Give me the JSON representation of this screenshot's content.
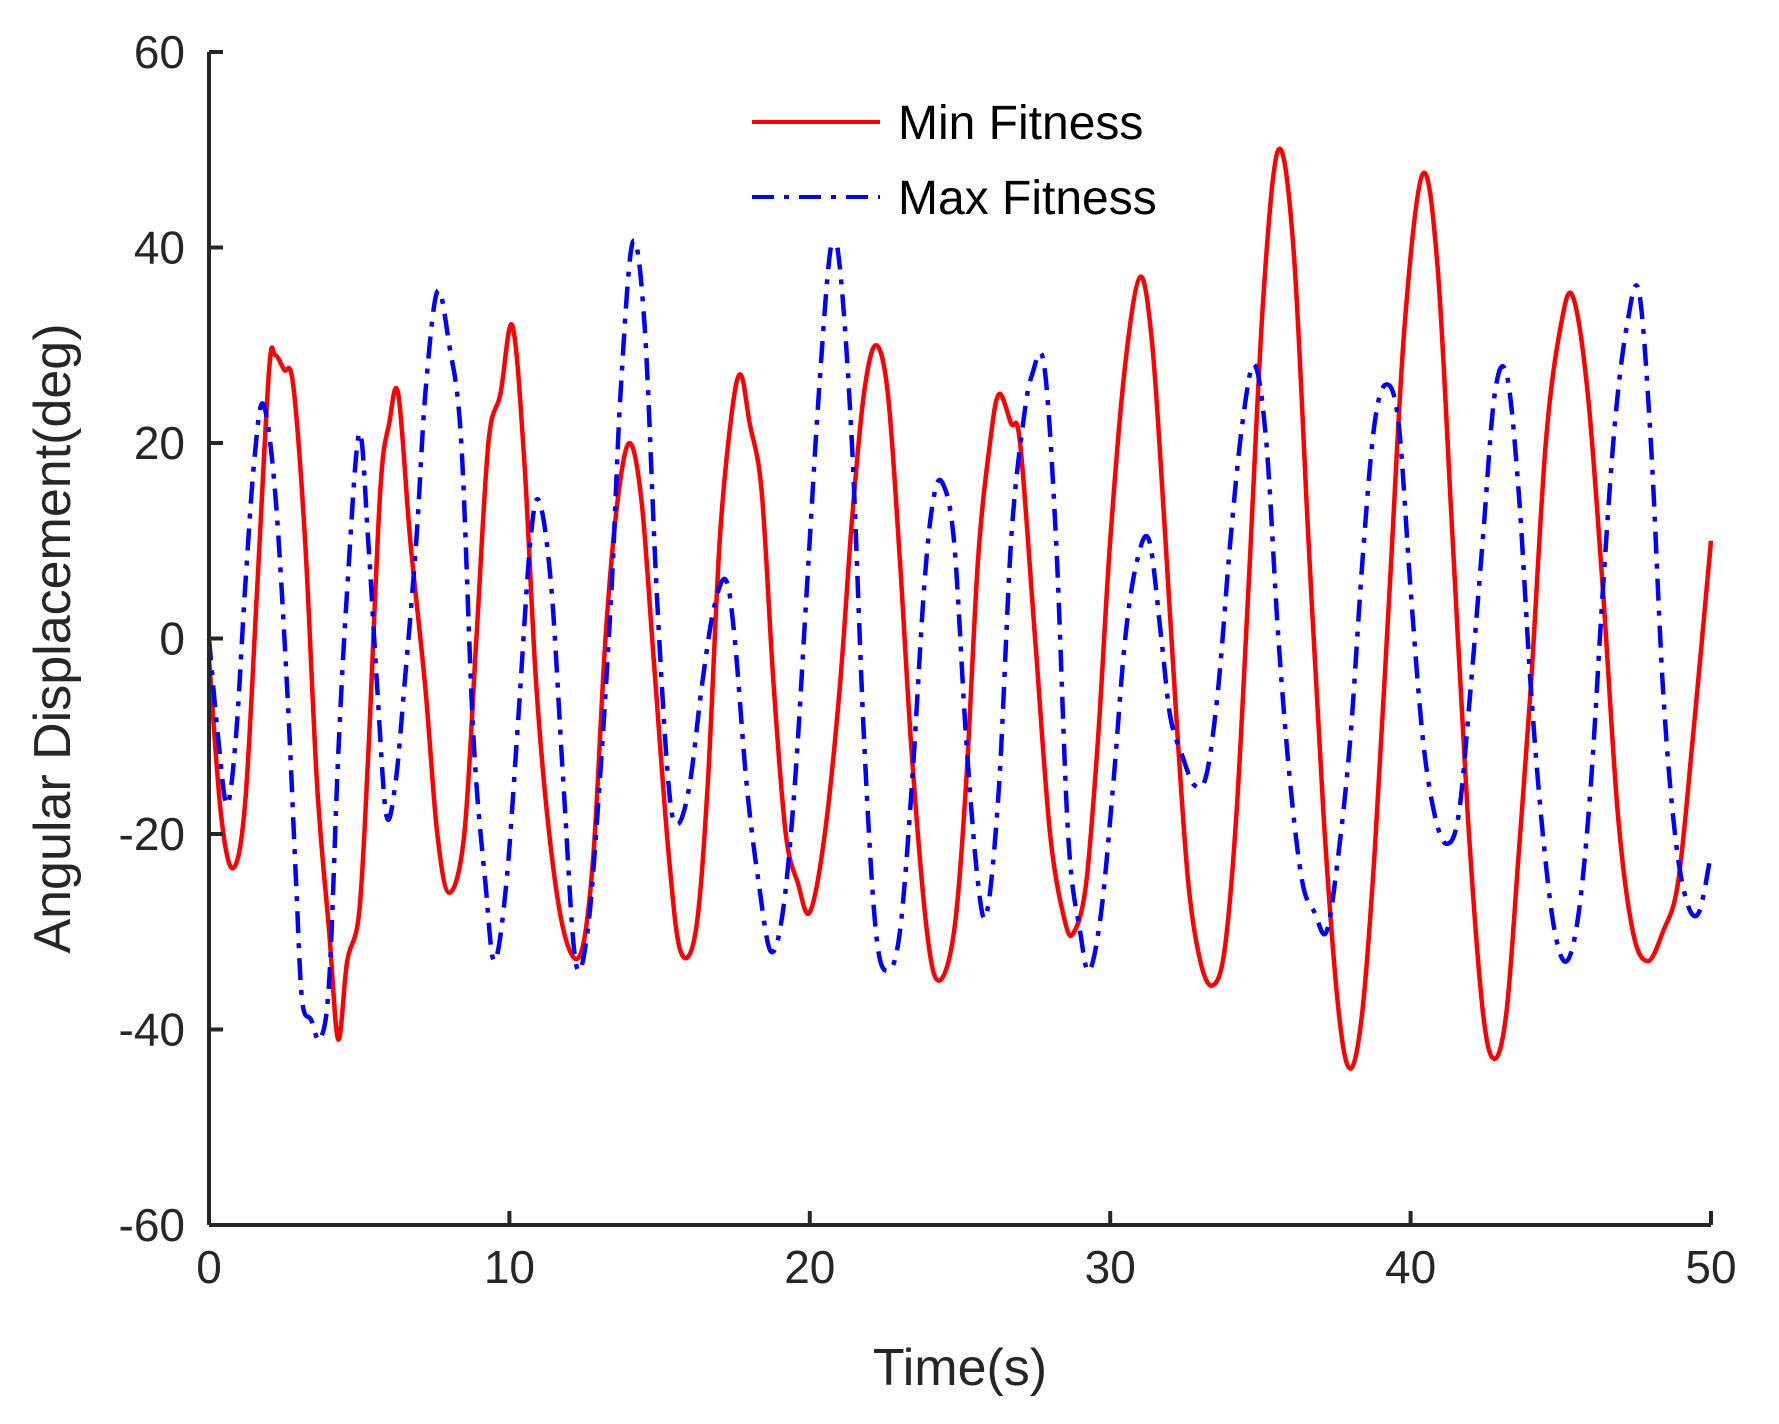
{
  "chart_data": {
    "type": "line",
    "title": "",
    "xlabel": "Time(s)",
    "ylabel": "Angular Displacement(deg)",
    "xlim": [
      0,
      50
    ],
    "ylim": [
      -60,
      60
    ],
    "xticks": [
      0,
      10,
      20,
      30,
      40,
      50
    ],
    "yticks": [
      -60,
      -40,
      -20,
      0,
      20,
      40,
      60
    ],
    "xtick_labels": [
      "0",
      "10",
      "20",
      "30",
      "40",
      "50"
    ],
    "ytick_labels": [
      "-60",
      "-40",
      "-20",
      "0",
      "20",
      "40",
      "60"
    ],
    "grid": false,
    "legend_position": "top-center",
    "series": [
      {
        "name": "Min Fitness",
        "color": "#ff0000",
        "style": "solid",
        "points": [
          [
            0,
            -2
          ],
          [
            0.4,
            -18
          ],
          [
            0.8,
            -23.5
          ],
          [
            1.2,
            -17
          ],
          [
            1.6,
            5
          ],
          [
            2.0,
            27.5
          ],
          [
            2.2,
            29
          ],
          [
            2.5,
            27.5
          ],
          [
            2.8,
            26
          ],
          [
            3.2,
            10
          ],
          [
            3.6,
            -15
          ],
          [
            4.0,
            -30
          ],
          [
            4.3,
            -41
          ],
          [
            4.6,
            -33
          ],
          [
            5.0,
            -28
          ],
          [
            5.3,
            -12
          ],
          [
            5.7,
            15
          ],
          [
            6.0,
            22
          ],
          [
            6.3,
            25
          ],
          [
            6.7,
            10
          ],
          [
            7.2,
            -5
          ],
          [
            7.6,
            -20
          ],
          [
            8.0,
            -26
          ],
          [
            8.5,
            -20
          ],
          [
            8.9,
            0
          ],
          [
            9.3,
            20
          ],
          [
            9.7,
            25
          ],
          [
            10.1,
            32
          ],
          [
            10.5,
            18
          ],
          [
            10.9,
            -5
          ],
          [
            11.4,
            -22
          ],
          [
            11.9,
            -31
          ],
          [
            12.4,
            -32
          ],
          [
            12.8,
            -22
          ],
          [
            13.2,
            0
          ],
          [
            13.6,
            14
          ],
          [
            14.0,
            20
          ],
          [
            14.4,
            14
          ],
          [
            14.8,
            -2
          ],
          [
            15.3,
            -22
          ],
          [
            15.7,
            -32
          ],
          [
            16.2,
            -30
          ],
          [
            16.6,
            -15
          ],
          [
            17.0,
            10
          ],
          [
            17.4,
            23
          ],
          [
            17.7,
            27
          ],
          [
            18.0,
            22
          ],
          [
            18.4,
            15
          ],
          [
            18.8,
            -5
          ],
          [
            19.2,
            -20
          ],
          [
            19.6,
            -25
          ],
          [
            20.0,
            -28
          ],
          [
            20.5,
            -20
          ],
          [
            21.0,
            -5
          ],
          [
            21.4,
            12
          ],
          [
            21.8,
            25
          ],
          [
            22.2,
            30
          ],
          [
            22.6,
            25
          ],
          [
            23.0,
            8
          ],
          [
            23.4,
            -12
          ],
          [
            23.9,
            -30
          ],
          [
            24.3,
            -35
          ],
          [
            24.8,
            -30
          ],
          [
            25.2,
            -15
          ],
          [
            25.6,
            8
          ],
          [
            26.0,
            20
          ],
          [
            26.3,
            25
          ],
          [
            26.7,
            22
          ],
          [
            27.0,
            20
          ],
          [
            27.5,
            0
          ],
          [
            28.0,
            -20
          ],
          [
            28.5,
            -29
          ],
          [
            28.8,
            -30
          ],
          [
            29.2,
            -25
          ],
          [
            29.6,
            -10
          ],
          [
            30.0,
            10
          ],
          [
            30.5,
            28
          ],
          [
            31.0,
            37
          ],
          [
            31.4,
            30
          ],
          [
            31.8,
            12
          ],
          [
            32.2,
            -8
          ],
          [
            32.6,
            -25
          ],
          [
            33.0,
            -33
          ],
          [
            33.4,
            -35.5
          ],
          [
            33.8,
            -32
          ],
          [
            34.2,
            -18
          ],
          [
            34.6,
            5
          ],
          [
            35.1,
            35
          ],
          [
            35.6,
            50
          ],
          [
            36.1,
            40
          ],
          [
            36.6,
            10
          ],
          [
            37.1,
            -18
          ],
          [
            37.6,
            -38
          ],
          [
            38.0,
            -44
          ],
          [
            38.4,
            -38
          ],
          [
            38.8,
            -22
          ],
          [
            39.3,
            5
          ],
          [
            39.8,
            32
          ],
          [
            40.4,
            47.5
          ],
          [
            40.9,
            38
          ],
          [
            41.4,
            10
          ],
          [
            41.9,
            -18
          ],
          [
            42.4,
            -38
          ],
          [
            42.8,
            -43
          ],
          [
            43.2,
            -38
          ],
          [
            43.6,
            -22
          ],
          [
            44.0,
            -5
          ],
          [
            44.5,
            20
          ],
          [
            45.0,
            32
          ],
          [
            45.4,
            35
          ],
          [
            45.9,
            25
          ],
          [
            46.4,
            5
          ],
          [
            46.9,
            -18
          ],
          [
            47.4,
            -30
          ],
          [
            47.9,
            -33
          ],
          [
            48.4,
            -30
          ],
          [
            48.9,
            -25
          ],
          [
            49.4,
            -10
          ],
          [
            50.0,
            10
          ]
        ]
      },
      {
        "name": "Max Fitness",
        "color": "#0000ff",
        "style": "dashdot",
        "points": [
          [
            0,
            0
          ],
          [
            0.3,
            -10
          ],
          [
            0.6,
            -17
          ],
          [
            0.9,
            -10
          ],
          [
            1.2,
            5
          ],
          [
            1.5,
            18
          ],
          [
            1.8,
            24
          ],
          [
            2.2,
            15
          ],
          [
            2.6,
            -5
          ],
          [
            2.9,
            -25
          ],
          [
            3.1,
            -37
          ],
          [
            3.4,
            -39
          ],
          [
            3.7,
            -41
          ],
          [
            4.0,
            -35
          ],
          [
            4.3,
            -12
          ],
          [
            4.6,
            5
          ],
          [
            5.0,
            21
          ],
          [
            5.3,
            10
          ],
          [
            5.6,
            -5
          ],
          [
            5.9,
            -18
          ],
          [
            6.2,
            -15
          ],
          [
            6.5,
            -5
          ],
          [
            6.9,
            10
          ],
          [
            7.2,
            25
          ],
          [
            7.6,
            35.5
          ],
          [
            8.0,
            30
          ],
          [
            8.4,
            20
          ],
          [
            8.8,
            -10
          ],
          [
            9.2,
            -25
          ],
          [
            9.5,
            -33
          ],
          [
            9.9,
            -25
          ],
          [
            10.3,
            -8
          ],
          [
            10.7,
            10
          ],
          [
            11.0,
            14
          ],
          [
            11.4,
            5
          ],
          [
            11.8,
            -15
          ],
          [
            12.2,
            -33
          ],
          [
            12.6,
            -30
          ],
          [
            13.0,
            -15
          ],
          [
            13.4,
            5
          ],
          [
            13.7,
            25
          ],
          [
            14.1,
            40.5
          ],
          [
            14.5,
            32
          ],
          [
            14.9,
            5
          ],
          [
            15.3,
            -15
          ],
          [
            15.6,
            -19
          ],
          [
            16.0,
            -15
          ],
          [
            16.4,
            -5
          ],
          [
            16.8,
            3
          ],
          [
            17.2,
            6
          ],
          [
            17.5,
            0
          ],
          [
            17.9,
            -15
          ],
          [
            18.3,
            -25
          ],
          [
            18.7,
            -32
          ],
          [
            19.1,
            -28
          ],
          [
            19.5,
            -15
          ],
          [
            19.9,
            5
          ],
          [
            20.3,
            25
          ],
          [
            20.7,
            40
          ],
          [
            21.0,
            38
          ],
          [
            21.4,
            20
          ],
          [
            21.8,
            -10
          ],
          [
            22.2,
            -30
          ],
          [
            22.6,
            -34
          ],
          [
            23.0,
            -30
          ],
          [
            23.4,
            -15
          ],
          [
            23.8,
            5
          ],
          [
            24.1,
            14
          ],
          [
            24.4,
            16
          ],
          [
            24.8,
            10
          ],
          [
            25.2,
            -10
          ],
          [
            25.6,
            -25
          ],
          [
            25.9,
            -28
          ],
          [
            26.3,
            -15
          ],
          [
            26.7,
            10
          ],
          [
            27.1,
            22
          ],
          [
            27.4,
            27
          ],
          [
            27.8,
            28
          ],
          [
            28.2,
            10
          ],
          [
            28.6,
            -20
          ],
          [
            29.0,
            -30
          ],
          [
            29.3,
            -34
          ],
          [
            29.7,
            -28
          ],
          [
            30.1,
            -15
          ],
          [
            30.5,
            0
          ],
          [
            30.9,
            8
          ],
          [
            31.3,
            10
          ],
          [
            31.7,
            0
          ],
          [
            32.0,
            -8
          ],
          [
            32.4,
            -12
          ],
          [
            32.8,
            -15
          ],
          [
            33.2,
            -14
          ],
          [
            33.6,
            -5
          ],
          [
            34.0,
            10
          ],
          [
            34.4,
            22
          ],
          [
            34.8,
            28
          ],
          [
            35.2,
            20
          ],
          [
            35.6,
            0
          ],
          [
            36.0,
            -15
          ],
          [
            36.4,
            -25
          ],
          [
            36.8,
            -28
          ],
          [
            37.2,
            -30
          ],
          [
            37.6,
            -22
          ],
          [
            38.0,
            -10
          ],
          [
            38.4,
            8
          ],
          [
            38.8,
            22
          ],
          [
            39.2,
            26
          ],
          [
            39.6,
            22
          ],
          [
            40.0,
            5
          ],
          [
            40.4,
            -10
          ],
          [
            40.8,
            -18
          ],
          [
            41.2,
            -21
          ],
          [
            41.6,
            -18
          ],
          [
            42.0,
            -5
          ],
          [
            42.4,
            10
          ],
          [
            42.8,
            25
          ],
          [
            43.2,
            27
          ],
          [
            43.6,
            15
          ],
          [
            44.0,
            -5
          ],
          [
            44.4,
            -20
          ],
          [
            44.8,
            -30
          ],
          [
            45.2,
            -33
          ],
          [
            45.6,
            -28
          ],
          [
            46.0,
            -15
          ],
          [
            46.4,
            5
          ],
          [
            46.8,
            22
          ],
          [
            47.2,
            32
          ],
          [
            47.6,
            35.5
          ],
          [
            48.0,
            20
          ],
          [
            48.4,
            -5
          ],
          [
            48.8,
            -20
          ],
          [
            49.2,
            -27
          ],
          [
            49.6,
            -28
          ],
          [
            50.0,
            -22
          ]
        ]
      }
    ]
  }
}
